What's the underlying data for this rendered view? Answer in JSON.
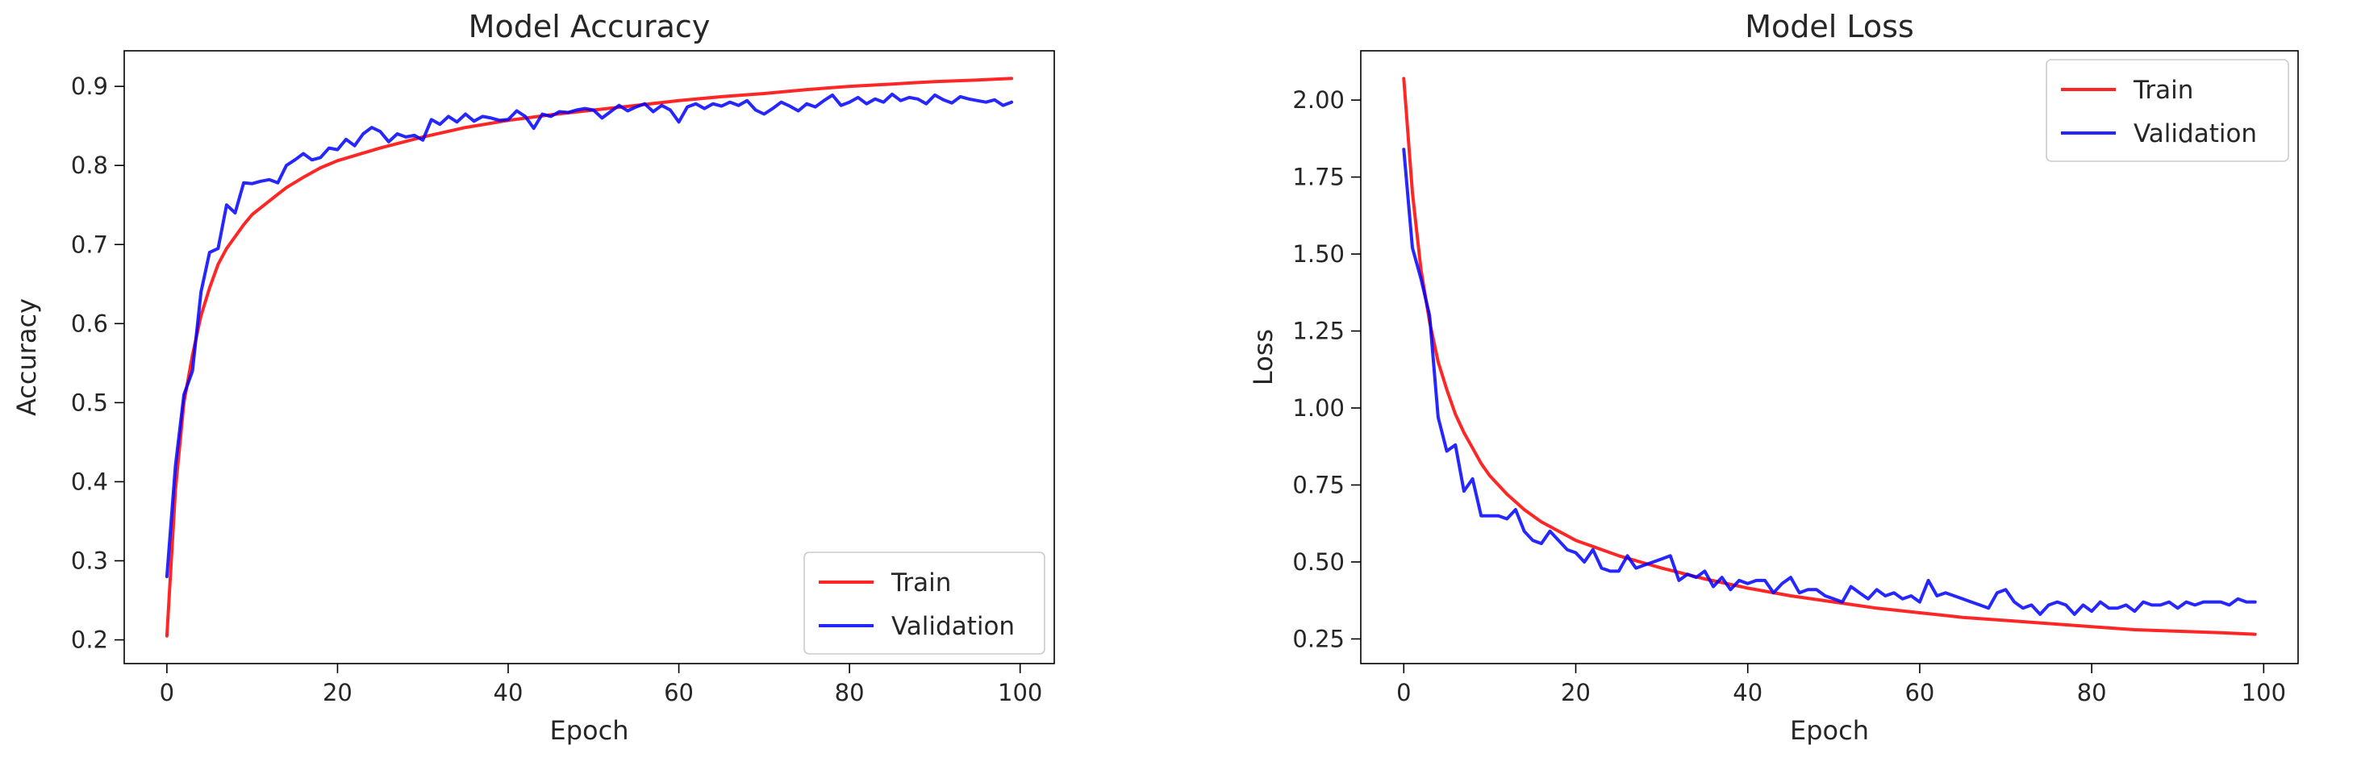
{
  "chart_data": [
    {
      "type": "line",
      "title": "Model Accuracy",
      "xlabel": "Epoch",
      "ylabel": "Accuracy",
      "xlim": [
        -5,
        104
      ],
      "ylim": [
        0.17,
        0.945
      ],
      "xticks": [
        0,
        20,
        40,
        60,
        80,
        100
      ],
      "yticks": [
        0.2,
        0.3,
        0.4,
        0.5,
        0.6,
        0.7,
        0.8,
        0.9
      ],
      "legend": "lower-right",
      "grid": false,
      "series": [
        {
          "name": "Train",
          "color": "#ff0000",
          "x": [
            0,
            1,
            2,
            3,
            4,
            5,
            6,
            7,
            8,
            9,
            10,
            12,
            14,
            16,
            18,
            20,
            25,
            30,
            35,
            40,
            45,
            50,
            55,
            60,
            65,
            70,
            75,
            80,
            85,
            90,
            95,
            99
          ],
          "values": [
            0.205,
            0.39,
            0.5,
            0.56,
            0.61,
            0.645,
            0.675,
            0.695,
            0.71,
            0.725,
            0.738,
            0.755,
            0.772,
            0.785,
            0.797,
            0.806,
            0.822,
            0.836,
            0.848,
            0.857,
            0.864,
            0.87,
            0.876,
            0.882,
            0.887,
            0.891,
            0.896,
            0.9,
            0.903,
            0.906,
            0.908,
            0.91
          ]
        },
        {
          "name": "Validation",
          "color": "#0000ff",
          "x": [
            0,
            1,
            2,
            3,
            4,
            5,
            6,
            7,
            8,
            9,
            10,
            11,
            12,
            13,
            14,
            15,
            16,
            17,
            18,
            19,
            20,
            21,
            22,
            23,
            24,
            25,
            26,
            27,
            28,
            29,
            30,
            31,
            32,
            33,
            34,
            35,
            36,
            37,
            38,
            39,
            40,
            41,
            42,
            43,
            44,
            45,
            46,
            47,
            48,
            49,
            50,
            51,
            52,
            53,
            54,
            55,
            56,
            57,
            58,
            59,
            60,
            61,
            62,
            63,
            64,
            65,
            66,
            67,
            68,
            69,
            70,
            71,
            72,
            73,
            74,
            75,
            76,
            77,
            78,
            79,
            80,
            81,
            82,
            83,
            84,
            85,
            86,
            87,
            88,
            89,
            90,
            91,
            92,
            93,
            94,
            95,
            96,
            97,
            98,
            99
          ],
          "values": [
            0.28,
            0.42,
            0.51,
            0.54,
            0.64,
            0.69,
            0.695,
            0.75,
            0.74,
            0.778,
            0.777,
            0.78,
            0.782,
            0.778,
            0.8,
            0.807,
            0.815,
            0.807,
            0.81,
            0.822,
            0.82,
            0.833,
            0.825,
            0.84,
            0.848,
            0.843,
            0.83,
            0.84,
            0.836,
            0.838,
            0.832,
            0.858,
            0.852,
            0.862,
            0.855,
            0.865,
            0.856,
            0.862,
            0.86,
            0.857,
            0.858,
            0.869,
            0.862,
            0.847,
            0.865,
            0.862,
            0.868,
            0.867,
            0.87,
            0.872,
            0.87,
            0.86,
            0.868,
            0.876,
            0.869,
            0.874,
            0.878,
            0.868,
            0.876,
            0.87,
            0.855,
            0.874,
            0.878,
            0.872,
            0.878,
            0.875,
            0.88,
            0.876,
            0.882,
            0.87,
            0.865,
            0.872,
            0.88,
            0.875,
            0.869,
            0.878,
            0.874,
            0.882,
            0.889,
            0.876,
            0.88,
            0.886,
            0.878,
            0.884,
            0.88,
            0.89,
            0.882,
            0.886,
            0.884,
            0.878,
            0.889,
            0.883,
            0.879,
            0.887,
            0.884,
            0.882,
            0.88,
            0.883,
            0.876,
            0.88
          ]
        }
      ]
    },
    {
      "type": "line",
      "title": "Model Loss",
      "xlabel": "Epoch",
      "ylabel": "Loss",
      "xlim": [
        -5,
        104
      ],
      "ylim": [
        0.17,
        2.16
      ],
      "xticks": [
        0,
        20,
        40,
        60,
        80,
        100
      ],
      "yticks": [
        0.25,
        0.5,
        0.75,
        1.0,
        1.25,
        1.5,
        1.75,
        2.0
      ],
      "ytick_labels": [
        "0.25",
        "0.50",
        "0.75",
        "1.00",
        "1.25",
        "1.50",
        "1.75",
        "2.00"
      ],
      "legend": "upper-right",
      "grid": false,
      "series": [
        {
          "name": "Train",
          "color": "#ff0000",
          "x": [
            0,
            1,
            2,
            3,
            4,
            5,
            6,
            7,
            8,
            9,
            10,
            12,
            14,
            16,
            18,
            20,
            25,
            30,
            35,
            40,
            45,
            50,
            55,
            60,
            65,
            70,
            75,
            80,
            85,
            90,
            95,
            99
          ],
          "values": [
            2.07,
            1.7,
            1.45,
            1.28,
            1.15,
            1.06,
            0.98,
            0.92,
            0.87,
            0.82,
            0.78,
            0.72,
            0.67,
            0.63,
            0.6,
            0.57,
            0.52,
            0.48,
            0.445,
            0.415,
            0.39,
            0.37,
            0.35,
            0.335,
            0.32,
            0.31,
            0.3,
            0.29,
            0.28,
            0.275,
            0.27,
            0.265
          ]
        },
        {
          "name": "Validation",
          "color": "#0000ff",
          "x": [
            0,
            1,
            2,
            3,
            4,
            5,
            6,
            7,
            8,
            9,
            10,
            11,
            12,
            13,
            14,
            15,
            16,
            17,
            18,
            19,
            20,
            21,
            22,
            23,
            24,
            25,
            26,
            27,
            28,
            29,
            30,
            31,
            32,
            33,
            34,
            35,
            36,
            37,
            38,
            39,
            40,
            41,
            42,
            43,
            44,
            45,
            46,
            47,
            48,
            49,
            50,
            51,
            52,
            53,
            54,
            55,
            56,
            57,
            58,
            59,
            60,
            61,
            62,
            63,
            64,
            65,
            66,
            67,
            68,
            69,
            70,
            71,
            72,
            73,
            74,
            75,
            76,
            77,
            78,
            79,
            80,
            81,
            82,
            83,
            84,
            85,
            86,
            87,
            88,
            89,
            90,
            91,
            92,
            93,
            94,
            95,
            96,
            97,
            98,
            99
          ],
          "values": [
            1.84,
            1.52,
            1.42,
            1.3,
            0.97,
            0.86,
            0.88,
            0.73,
            0.77,
            0.65,
            0.65,
            0.65,
            0.64,
            0.67,
            0.6,
            0.57,
            0.56,
            0.6,
            0.57,
            0.54,
            0.53,
            0.5,
            0.54,
            0.48,
            0.47,
            0.47,
            0.52,
            0.48,
            0.49,
            0.5,
            0.51,
            0.52,
            0.44,
            0.46,
            0.45,
            0.47,
            0.42,
            0.45,
            0.41,
            0.44,
            0.43,
            0.44,
            0.44,
            0.4,
            0.43,
            0.45,
            0.4,
            0.41,
            0.41,
            0.39,
            0.38,
            0.37,
            0.42,
            0.4,
            0.38,
            0.41,
            0.39,
            0.4,
            0.38,
            0.39,
            0.37,
            0.44,
            0.39,
            0.4,
            0.39,
            0.38,
            0.37,
            0.36,
            0.35,
            0.4,
            0.41,
            0.37,
            0.35,
            0.36,
            0.33,
            0.36,
            0.37,
            0.36,
            0.33,
            0.36,
            0.34,
            0.37,
            0.35,
            0.35,
            0.36,
            0.34,
            0.37,
            0.36,
            0.36,
            0.37,
            0.35,
            0.37,
            0.36,
            0.37,
            0.37,
            0.37,
            0.36,
            0.38,
            0.37,
            0.37
          ]
        }
      ]
    }
  ]
}
